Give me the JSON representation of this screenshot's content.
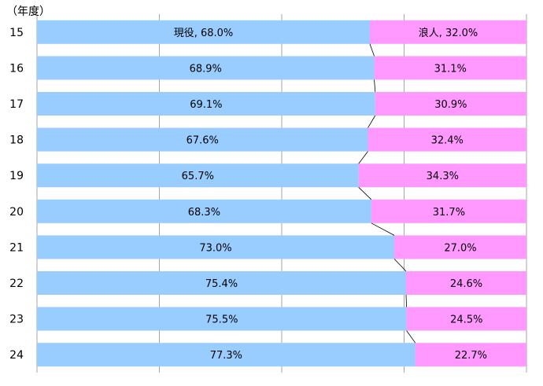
{
  "colors": {
    "current": "#99ccff",
    "ronin": "#ff99ff",
    "grid": "#a6a6a6",
    "connector": "#000000",
    "text": "#000000"
  },
  "chart_data": {
    "type": "bar",
    "orientation": "horizontal",
    "stacked": "percent",
    "unit_label": "（年度）",
    "categories": [
      "15",
      "16",
      "17",
      "18",
      "19",
      "20",
      "21",
      "22",
      "23",
      "24"
    ],
    "series": [
      {
        "name": "現役",
        "values": [
          68.0,
          68.9,
          69.1,
          67.6,
          65.7,
          68.3,
          73.0,
          75.4,
          75.5,
          77.3
        ]
      },
      {
        "name": "浪人",
        "values": [
          32.0,
          31.1,
          30.9,
          32.4,
          34.3,
          31.7,
          27.0,
          24.6,
          24.5,
          22.7
        ]
      }
    ],
    "data_labels": [
      [
        "現役, 68.0%",
        "68.9%",
        "69.1%",
        "67.6%",
        "65.7%",
        "68.3%",
        "73.0%",
        "75.4%",
        "75.5%",
        "77.3%"
      ],
      [
        "浪人, 32.0%",
        "31.1%",
        "30.9%",
        "32.4%",
        "34.3%",
        "31.7%",
        "27.0%",
        "24.6%",
        "24.5%",
        "22.7%"
      ]
    ],
    "xlim": [
      0,
      100
    ],
    "grid": true,
    "series_lines": true,
    "legend": "none"
  }
}
